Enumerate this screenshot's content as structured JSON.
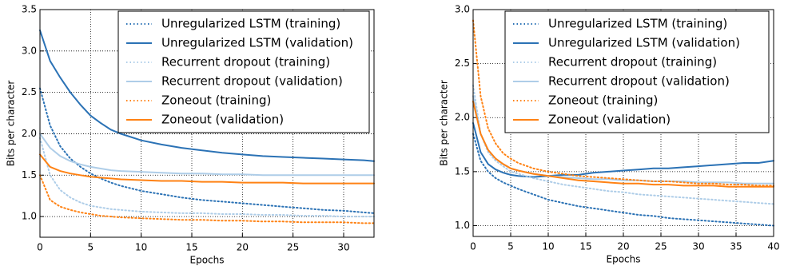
{
  "chart_data": [
    {
      "type": "line",
      "xlabel": "Epochs",
      "ylabel": "Bits per character",
      "x": [
        0,
        1,
        2,
        3,
        4,
        5,
        6,
        7,
        8,
        10,
        12,
        14,
        16,
        18,
        20,
        22,
        24,
        26,
        28,
        30,
        32,
        33
      ],
      "xlim": [
        0,
        33
      ],
      "xticks": [
        0,
        5,
        10,
        15,
        20,
        25,
        30
      ],
      "ylim": [
        0.75,
        3.5
      ],
      "yticks": [
        {
          "value": 1,
          "label": "1.0"
        },
        1.5,
        {
          "value": 2,
          "label": "2.0"
        },
        2.5,
        {
          "value": 3,
          "label": "3.0"
        },
        3.5
      ],
      "grid": true,
      "legend": "upper right",
      "series": [
        {
          "name": "Unregularized LSTM (training)",
          "color": "#2b72b5",
          "linestyle": "dotted",
          "values": [
            2.55,
            2.1,
            1.85,
            1.7,
            1.6,
            1.52,
            1.46,
            1.41,
            1.37,
            1.31,
            1.27,
            1.23,
            1.2,
            1.18,
            1.16,
            1.14,
            1.12,
            1.1,
            1.08,
            1.07,
            1.05,
            1.04
          ]
        },
        {
          "name": "Unregularized LSTM (validation)",
          "color": "#2b72b5",
          "linestyle": "solid",
          "values": [
            3.25,
            2.88,
            2.68,
            2.5,
            2.35,
            2.22,
            2.13,
            2.05,
            2.0,
            1.92,
            1.87,
            1.83,
            1.8,
            1.77,
            1.75,
            1.73,
            1.72,
            1.71,
            1.7,
            1.69,
            1.68,
            1.67
          ]
        },
        {
          "name": "Recurrent dropout (training)",
          "color": "#aecde8",
          "linestyle": "dotted",
          "values": [
            1.95,
            1.5,
            1.32,
            1.23,
            1.17,
            1.13,
            1.11,
            1.09,
            1.08,
            1.06,
            1.05,
            1.04,
            1.04,
            1.03,
            1.03,
            1.02,
            1.02,
            1.01,
            1.01,
            1.0,
            1.0,
            1.0
          ]
        },
        {
          "name": "Recurrent dropout (validation)",
          "color": "#aecde8",
          "linestyle": "solid",
          "values": [
            2.0,
            1.83,
            1.73,
            1.67,
            1.63,
            1.6,
            1.58,
            1.56,
            1.55,
            1.54,
            1.53,
            1.52,
            1.52,
            1.51,
            1.51,
            1.5,
            1.5,
            1.5,
            1.5,
            1.5,
            1.5,
            1.5
          ]
        },
        {
          "name": "Zoneout (training)",
          "color": "#ff8214",
          "linestyle": "dotted",
          "values": [
            1.5,
            1.2,
            1.12,
            1.08,
            1.05,
            1.03,
            1.01,
            1.0,
            0.99,
            0.98,
            0.97,
            0.96,
            0.96,
            0.95,
            0.95,
            0.94,
            0.94,
            0.93,
            0.93,
            0.93,
            0.92,
            0.92
          ]
        },
        {
          "name": "Zoneout (validation)",
          "color": "#ff8214",
          "linestyle": "solid",
          "values": [
            1.75,
            1.6,
            1.55,
            1.52,
            1.5,
            1.48,
            1.47,
            1.46,
            1.45,
            1.44,
            1.43,
            1.43,
            1.42,
            1.42,
            1.41,
            1.41,
            1.41,
            1.4,
            1.4,
            1.4,
            1.4,
            1.4
          ]
        }
      ]
    },
    {
      "type": "line",
      "xlabel": "Epochs",
      "ylabel": "Bits per character",
      "x": [
        0,
        1,
        2,
        3,
        4,
        5,
        6,
        8,
        10,
        12,
        14,
        16,
        18,
        20,
        22,
        24,
        26,
        28,
        30,
        32,
        34,
        36,
        38,
        40
      ],
      "xlim": [
        0,
        40
      ],
      "xticks": [
        0,
        5,
        10,
        15,
        20,
        25,
        30,
        35,
        40
      ],
      "ylim": [
        0.9,
        3.0
      ],
      "yticks": [
        {
          "value": 1,
          "label": "1.0"
        },
        1.5,
        {
          "value": 2,
          "label": "2.0"
        },
        2.5,
        {
          "value": 3,
          "label": "3.0"
        }
      ],
      "grid": true,
      "legend": "upper right",
      "series": [
        {
          "name": "Unregularized LSTM (training)",
          "color": "#2b72b5",
          "linestyle": "dotted",
          "values": [
            1.85,
            1.6,
            1.5,
            1.44,
            1.4,
            1.37,
            1.34,
            1.29,
            1.24,
            1.21,
            1.18,
            1.16,
            1.14,
            1.12,
            1.1,
            1.09,
            1.07,
            1.06,
            1.05,
            1.04,
            1.03,
            1.02,
            1.01,
            1.0
          ]
        },
        {
          "name": "Unregularized LSTM (validation)",
          "color": "#2b72b5",
          "linestyle": "solid",
          "values": [
            1.95,
            1.68,
            1.57,
            1.52,
            1.49,
            1.47,
            1.46,
            1.45,
            1.46,
            1.47,
            1.47,
            1.49,
            1.5,
            1.51,
            1.52,
            1.53,
            1.53,
            1.54,
            1.55,
            1.56,
            1.57,
            1.58,
            1.58,
            1.6
          ]
        },
        {
          "name": "Recurrent dropout (training)",
          "color": "#aecde8",
          "linestyle": "dotted",
          "values": [
            2.3,
            1.85,
            1.68,
            1.6,
            1.55,
            1.5,
            1.48,
            1.44,
            1.41,
            1.38,
            1.36,
            1.34,
            1.32,
            1.31,
            1.29,
            1.28,
            1.27,
            1.26,
            1.25,
            1.24,
            1.23,
            1.22,
            1.21,
            1.2
          ]
        },
        {
          "name": "Recurrent dropout (validation)",
          "color": "#aecde8",
          "linestyle": "solid",
          "values": [
            2.2,
            1.85,
            1.7,
            1.62,
            1.57,
            1.53,
            1.51,
            1.48,
            1.46,
            1.45,
            1.44,
            1.43,
            1.43,
            1.42,
            1.42,
            1.41,
            1.41,
            1.41,
            1.4,
            1.4,
            1.4,
            1.39,
            1.39,
            1.39
          ]
        },
        {
          "name": "Zoneout (training)",
          "color": "#ff8214",
          "linestyle": "dotted",
          "values": [
            2.9,
            2.2,
            1.9,
            1.76,
            1.67,
            1.62,
            1.58,
            1.53,
            1.5,
            1.48,
            1.46,
            1.45,
            1.44,
            1.43,
            1.42,
            1.41,
            1.41,
            1.4,
            1.39,
            1.39,
            1.38,
            1.38,
            1.37,
            1.37
          ]
        },
        {
          "name": "Zoneout (validation)",
          "color": "#ff8214",
          "linestyle": "solid",
          "values": [
            2.15,
            1.85,
            1.7,
            1.62,
            1.57,
            1.53,
            1.51,
            1.48,
            1.46,
            1.44,
            1.42,
            1.41,
            1.4,
            1.39,
            1.39,
            1.38,
            1.38,
            1.37,
            1.37,
            1.37,
            1.36,
            1.36,
            1.36,
            1.36
          ]
        }
      ]
    }
  ]
}
